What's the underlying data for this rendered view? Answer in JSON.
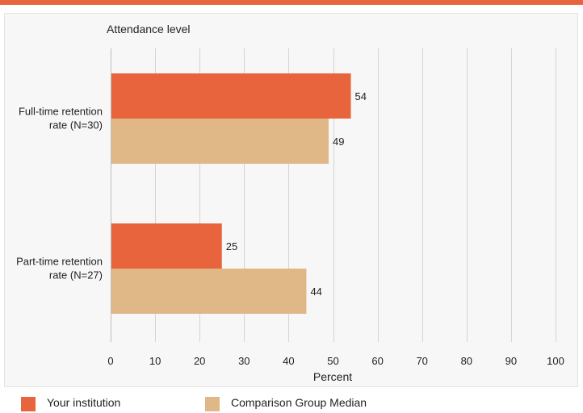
{
  "chart_data": {
    "type": "bar",
    "orientation": "horizontal",
    "title": "Attendance level",
    "xlabel": "Percent",
    "ylabel": "",
    "xlim": [
      0,
      100
    ],
    "xticks": [
      0,
      10,
      20,
      30,
      40,
      50,
      60,
      70,
      80,
      90,
      100
    ],
    "grid": true,
    "legend_position": "bottom-left",
    "categories": [
      "Full-time retention rate (N=30)",
      "Part-time retention rate (N=27)"
    ],
    "category_lines": [
      [
        "Full-time retention",
        "rate (N=30)"
      ],
      [
        "Part-time retention",
        "rate (N=27)"
      ]
    ],
    "series": [
      {
        "name": "Your institution",
        "color": "#e8643c",
        "values": [
          54,
          25
        ]
      },
      {
        "name": "Comparison Group Median",
        "color": "#e0b887",
        "values": [
          49,
          44
        ]
      }
    ]
  }
}
